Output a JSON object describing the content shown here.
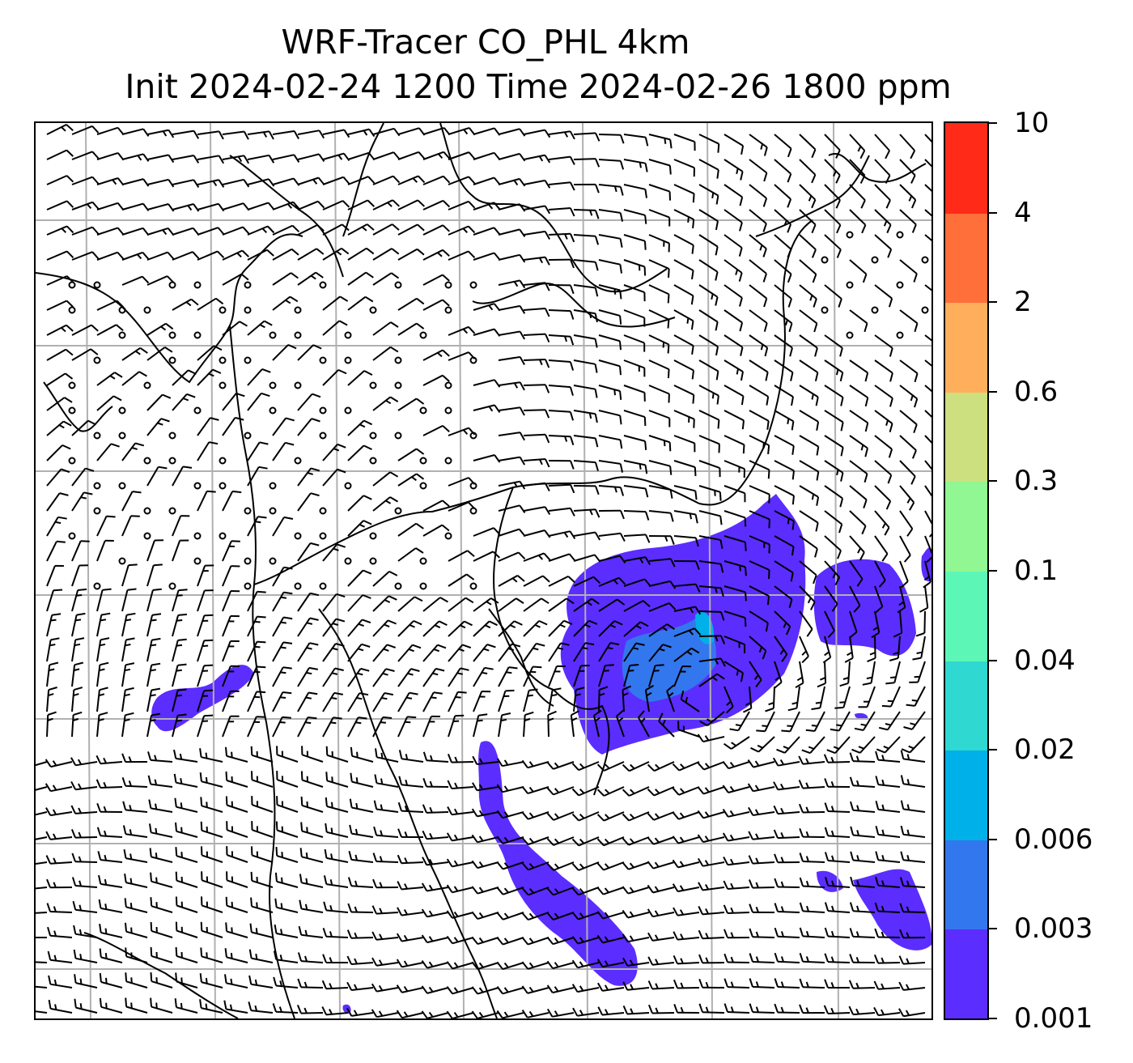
{
  "title": {
    "line1": "WRF-Tracer CO_PHL 4km",
    "line2": "Init 2024-02-24 1200 Time 2024-02-26 1800 ppm"
  },
  "map": {
    "field": "CO tracer concentration (ppm)",
    "overlay": "wind barbs",
    "gridlines": true,
    "grid_color": "#b0b0b0",
    "coastline_color": "#000000",
    "plume_colors": {
      "level_0_001": "#5b2dff",
      "level_0_003": "#3377ee",
      "level_0_006": "#00b0e8"
    }
  },
  "colorbar": {
    "levels": [
      "0.001",
      "0.003",
      "0.006",
      "0.02",
      "0.04",
      "0.1",
      "0.3",
      "0.6",
      "2",
      "4",
      "10"
    ],
    "colors": [
      "#5b2dff",
      "#3377ee",
      "#00b0e8",
      "#2fd8d0",
      "#5cf7b7",
      "#90f792",
      "#cce07f",
      "#ffaf5c",
      "#ff6f3a",
      "#ff2a18"
    ]
  }
}
